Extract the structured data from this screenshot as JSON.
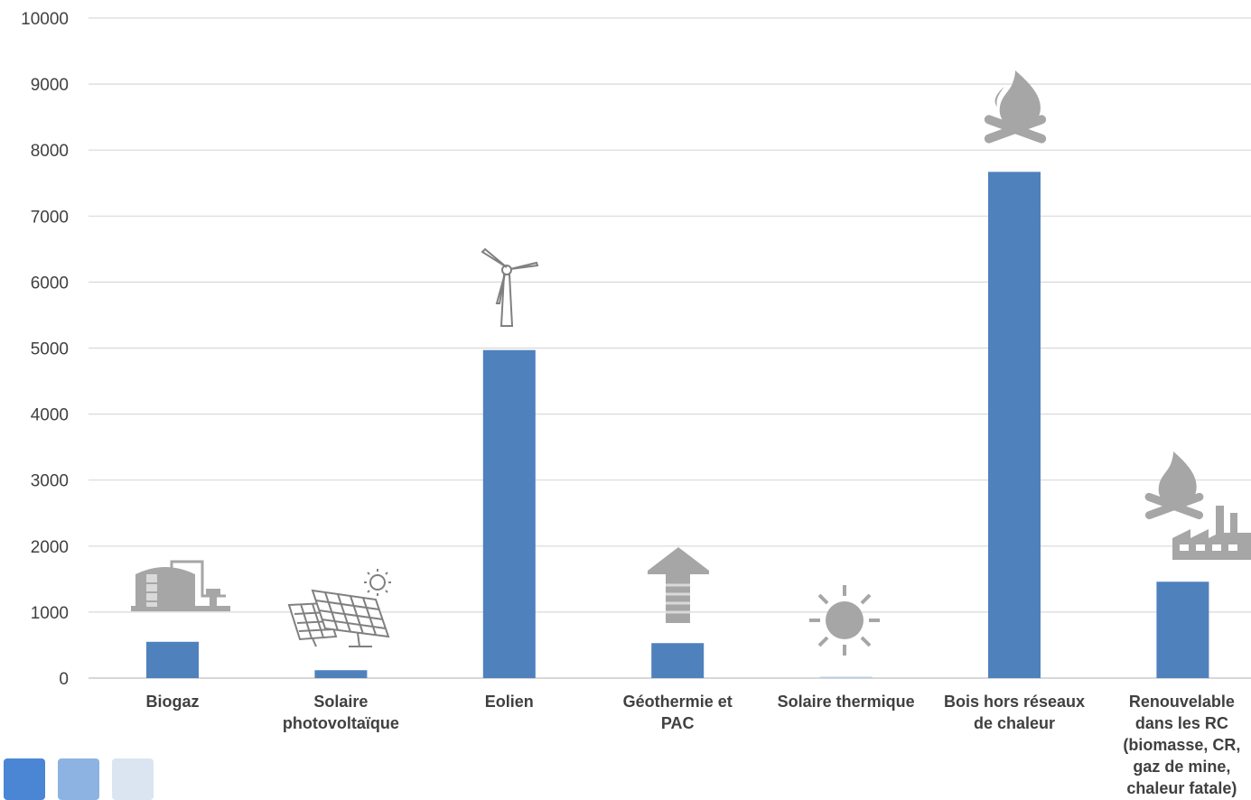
{
  "chart_data": {
    "type": "bar",
    "categories": [
      [
        "Biogaz"
      ],
      [
        "Solaire",
        "photovoltaïque"
      ],
      [
        "Eolien"
      ],
      [
        "Géothermie et",
        "PAC"
      ],
      [
        "Solaire thermique"
      ],
      [
        "Bois hors réseaux",
        "de chaleur"
      ],
      [
        "Renouvelable",
        "dans les RC",
        "(biomasse, CR,",
        "gaz de mine,",
        "chaleur fatale)"
      ]
    ],
    "values": [
      550,
      120,
      4970,
      530,
      20,
      7670,
      1460
    ],
    "ylim": [
      0,
      10000
    ],
    "yticks": [
      0,
      1000,
      2000,
      3000,
      4000,
      5000,
      6000,
      7000,
      8000,
      9000,
      10000
    ],
    "grid": true,
    "bar_color": "#4f81bd",
    "bar_colors_override": {
      "4": "#b8cce4"
    },
    "icon_color": "#a6a6a6",
    "icons": [
      "biogas-tank-icon",
      "solar-panel-icon",
      "wind-turbine-icon",
      "geothermal-house-icon",
      "sun-icon",
      "campfire-icon",
      "campfire-factory-icon"
    ]
  },
  "legend_colors": [
    "#4a86d4",
    "#8db3e2",
    "#dbe5f1"
  ]
}
